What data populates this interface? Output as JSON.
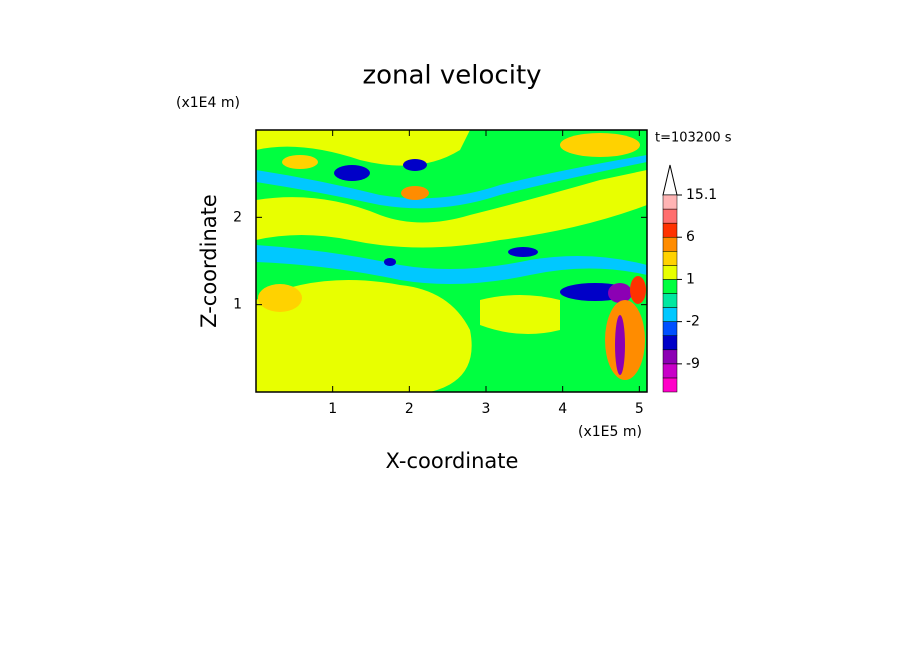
{
  "chart_data": {
    "type": "contour",
    "title": "zonal velocity",
    "x_label": "X-coordinate",
    "y_label": "Z-coordinate",
    "x_unit": "(x1E5 m)",
    "y_unit": "(x1E4 m)",
    "annotation": "t=103200 s",
    "xlim": [
      0,
      5.1
    ],
    "ylim": [
      0,
      3
    ],
    "xticks": [
      1,
      2,
      3,
      4,
      5
    ],
    "yticks": [
      1,
      2
    ],
    "colorbar": {
      "levels": [
        -15,
        -12,
        -9,
        -6,
        -4,
        -2,
        -1,
        0,
        1,
        2,
        4,
        6,
        9,
        12,
        15.1
      ],
      "colors": [
        "#ff00c8",
        "#c800c8",
        "#8c00b4",
        "#0000c8",
        "#0050ff",
        "#00c8ff",
        "#00e8a0",
        "#00ff40",
        "#e8ff00",
        "#ffd200",
        "#ff8c00",
        "#ff3200",
        "#ff6e6e",
        "#ffb4b4"
      ],
      "ticks": [
        15.1,
        6,
        1,
        -2,
        -9
      ]
    }
  }
}
